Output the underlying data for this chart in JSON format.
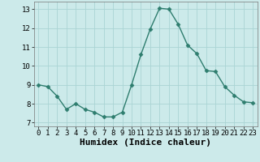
{
  "x": [
    0,
    1,
    2,
    3,
    4,
    5,
    6,
    7,
    8,
    9,
    10,
    11,
    12,
    13,
    14,
    15,
    16,
    17,
    18,
    19,
    20,
    21,
    22,
    23
  ],
  "y": [
    9.0,
    8.9,
    8.4,
    7.7,
    8.0,
    7.7,
    7.55,
    7.3,
    7.3,
    7.55,
    9.0,
    10.6,
    11.95,
    13.05,
    13.0,
    12.2,
    11.1,
    10.65,
    9.75,
    9.7,
    8.9,
    8.45,
    8.1,
    8.05
  ],
  "line_color": "#2e7d6e",
  "marker": "D",
  "marker_size": 2.5,
  "background_color": "#cceaea",
  "grid_color": "#aad4d4",
  "xlabel": "Humidex (Indice chaleur)",
  "ylim": [
    6.8,
    13.4
  ],
  "xlim": [
    -0.5,
    23.5
  ],
  "yticks": [
    7,
    8,
    9,
    10,
    11,
    12,
    13
  ],
  "xticks": [
    0,
    1,
    2,
    3,
    4,
    5,
    6,
    7,
    8,
    9,
    10,
    11,
    12,
    13,
    14,
    15,
    16,
    17,
    18,
    19,
    20,
    21,
    22,
    23
  ],
  "tick_fontsize": 6.5,
  "xlabel_fontsize": 8,
  "linewidth": 1.0
}
